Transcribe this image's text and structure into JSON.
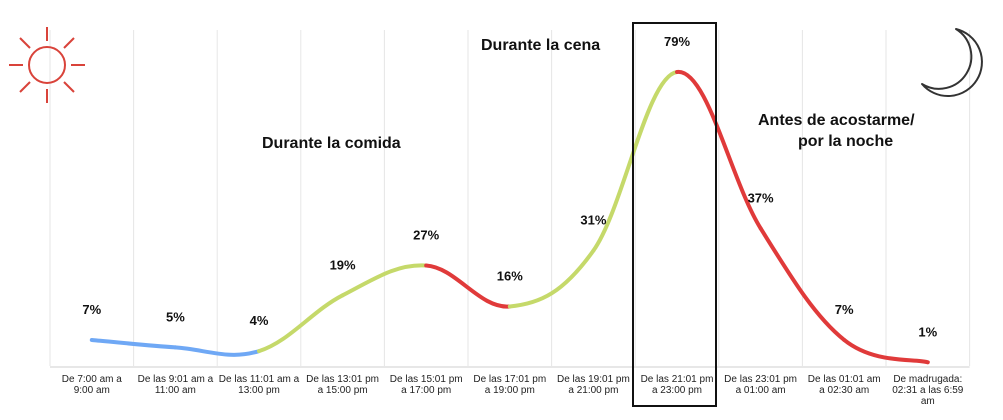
{
  "chart_data": {
    "type": "line",
    "categories": [
      "De 7:00 am a 9:00 am",
      "De las 9:01 am a 11:00 am",
      "De las 11:01 am a 13:00 pm",
      "De las 13:01 pm a 15:00 pm",
      "De las 15:01 pm a 17:00 pm",
      "De las 17:01 pm a 19:00 pm",
      "De las 19:01 pm a 21:00 pm",
      "De las 21:01 pm a 23:00 pm",
      "De las 23:01 pm a 01:00 am",
      "De las 01:01 am a 02:30 am",
      "De madrugada: 02:31 a las 6:59 am"
    ],
    "category_lines": [
      [
        "De 7:00 am a",
        "9:00 am"
      ],
      [
        "De las 9:01 am a",
        "11:00 am"
      ],
      [
        "De las 11:01 am a",
        "13:00 pm"
      ],
      [
        "De las 13:01 pm",
        "a 15:00 pm"
      ],
      [
        "De las 15:01 pm",
        "a 17:00 pm"
      ],
      [
        "De las 17:01 pm",
        "a 19:00 pm"
      ],
      [
        "De las 19:01 pm",
        "a 21:00 pm"
      ],
      [
        "De las 21:01 pm",
        "a 23:00 pm"
      ],
      [
        "De las 23:01 pm",
        "a 01:00 am"
      ],
      [
        "De las 01:01 am",
        "a 02:30 am"
      ],
      [
        "De madrugada:",
        "02:31 a las 6:59",
        "am"
      ]
    ],
    "values": [
      7,
      5,
      4,
      19,
      27,
      16,
      31,
      79,
      37,
      7,
      1
    ],
    "labels": [
      "7%",
      "5%",
      "4%",
      "19%",
      "27%",
      "16%",
      "31%",
      "79%",
      "37%",
      "7%",
      "1%"
    ],
    "highlight_index": 7,
    "segment_colors": {
      "morning": "#6fa8f5",
      "rising": "#c5d96a",
      "falling": "#e03a3a"
    },
    "icon_color_sun": "#d9433a",
    "icon_color_moon": "#333333",
    "grid": "vertical",
    "annotations": {
      "comida": "Durante la comida",
      "cena": "Durante la cena",
      "noche_line1": "Antes de acostarme/",
      "noche_line2": "por la noche"
    }
  }
}
